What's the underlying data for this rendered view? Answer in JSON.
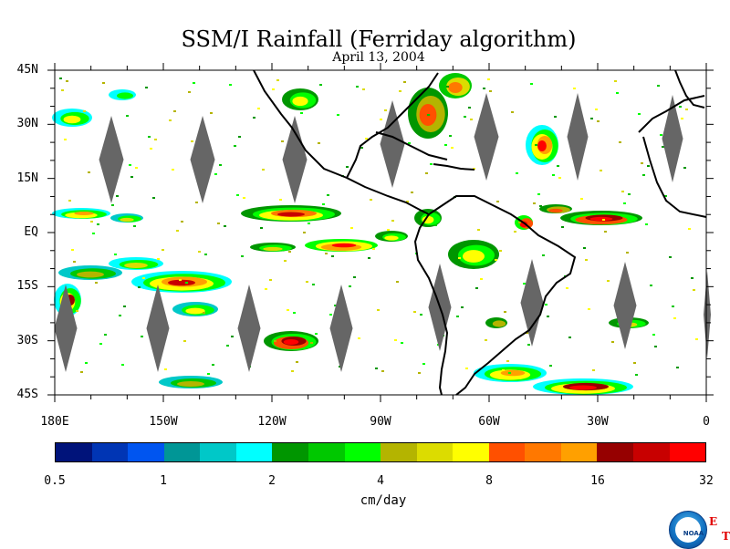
{
  "title": "SSM/I Rainfall (Ferriday algorithm)",
  "subtitle": "April 13, 2004",
  "map": {
    "lon_range": [
      -180,
      0
    ],
    "lat_range": [
      -45,
      45
    ],
    "lat_labels": [
      {
        "lat": 45,
        "label": "45N"
      },
      {
        "lat": 30,
        "label": "30N"
      },
      {
        "lat": 15,
        "label": "15N"
      },
      {
        "lat": 0,
        "label": "EQ"
      },
      {
        "lat": -15,
        "label": "15S"
      },
      {
        "lat": -30,
        "label": "30S"
      },
      {
        "lat": -45,
        "label": "45S"
      }
    ],
    "lon_labels": [
      {
        "lon": -180,
        "label": "180E"
      },
      {
        "lon": -150,
        "label": "150W"
      },
      {
        "lon": -120,
        "label": "120W"
      },
      {
        "lon": -90,
        "label": "90W"
      },
      {
        "lon": -60,
        "label": "60W"
      },
      {
        "lon": -30,
        "label": "30W"
      },
      {
        "lon": 0,
        "label": "0"
      }
    ],
    "gap_color": "#666666",
    "coast_color": "#000000"
  },
  "colorbar": {
    "unit": "cm/day",
    "colors": [
      "#00137a",
      "#0035b4",
      "#0055f0",
      "#009696",
      "#00c8c8",
      "#00ffff",
      "#009600",
      "#00c800",
      "#00ff00",
      "#b4b400",
      "#dcdc00",
      "#ffff00",
      "#ff5000",
      "#ff7800",
      "#ffa000",
      "#960000",
      "#c80000",
      "#ff0000"
    ],
    "labels": [
      "0.5",
      "1",
      "2",
      "4",
      "8",
      "16",
      "32"
    ]
  },
  "logo_text": "NOAA",
  "corner_letters": [
    "E",
    "T"
  ]
}
